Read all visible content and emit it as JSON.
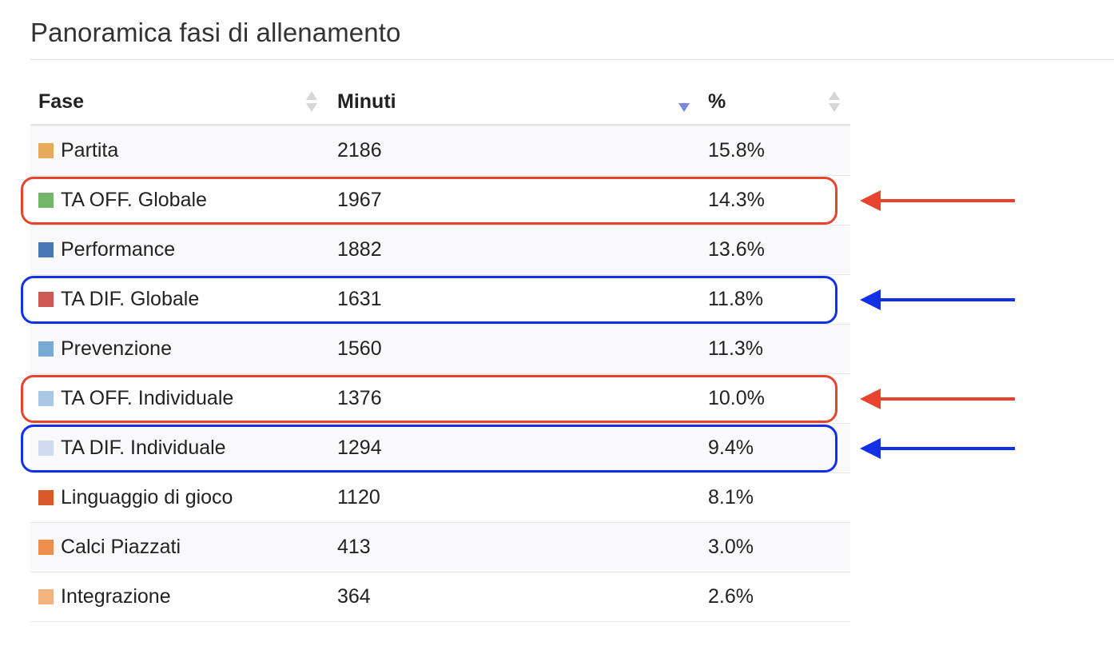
{
  "title": "Panoramica fasi di allenamento",
  "columns": {
    "fase": "Fase",
    "minuti": "Minuti",
    "pct": "%"
  },
  "sort": {
    "column": "minuti",
    "direction": "descending",
    "active_color": "#7b86d8"
  },
  "rows": [
    {
      "fase": "Partita",
      "minuti": "2186",
      "pct": "15.8%",
      "color": "#e8a95b"
    },
    {
      "fase": "TA OFF. Globale",
      "minuti": "1967",
      "pct": "14.3%",
      "color": "#73b66a"
    },
    {
      "fase": "Performance",
      "minuti": "1882",
      "pct": "13.6%",
      "color": "#4a78b6"
    },
    {
      "fase": "TA DIF. Globale",
      "minuti": "1631",
      "pct": "11.8%",
      "color": "#cc5b53"
    },
    {
      "fase": "Prevenzione",
      "minuti": "1560",
      "pct": "11.3%",
      "color": "#77abd5"
    },
    {
      "fase": "TA OFF. Individuale",
      "minuti": "1376",
      "pct": "10.0%",
      "color": "#a8c8e4"
    },
    {
      "fase": "TA DIF. Individuale",
      "minuti": "1294",
      "pct": "9.4%",
      "color": "#cfdcef"
    },
    {
      "fase": "Linguaggio di gioco",
      "minuti": "1120",
      "pct": "8.1%",
      "color": "#d95a29"
    },
    {
      "fase": "Calci Piazzati",
      "minuti": "413",
      "pct": "3.0%",
      "color": "#ef8e4d"
    },
    {
      "fase": "Integrazione",
      "minuti": "364",
      "pct": "2.6%",
      "color": "#f3b27e"
    }
  ],
  "annotations": {
    "red_color": "#e8432f",
    "blue_color": "#1330e6",
    "highlighted_rows": [
      {
        "row": 1,
        "color": "red"
      },
      {
        "row": 3,
        "color": "blue"
      },
      {
        "row": 5,
        "color": "red"
      },
      {
        "row": 6,
        "color": "blue"
      }
    ]
  }
}
